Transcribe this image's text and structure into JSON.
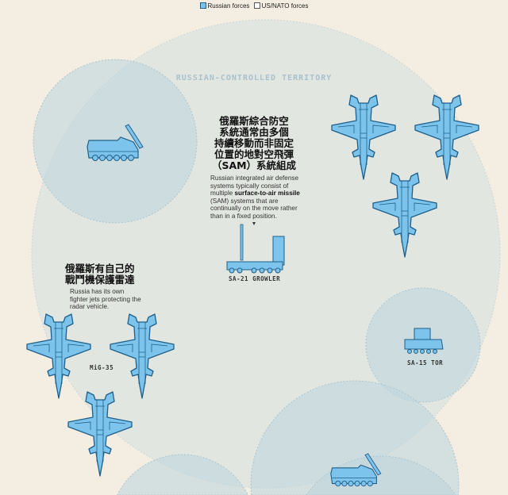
{
  "legend": {
    "russian": "Russian forces",
    "us_nato": "US/NATO forces"
  },
  "territory_label": "RUSSIAN-CONTROLLED TERRITORY",
  "sam_note": {
    "zh_lines": [
      "俄羅斯綜合防空",
      "系統通常由多個",
      "持續移動而非固定",
      "位置的地對空飛彈",
      "（SAM）系統組成"
    ],
    "en_before": "Russian integrated air defense systems typically consist of multiple ",
    "en_bold": "surface-to-air missile",
    "en_after": " (SAM) systems that are continually on the move rather than in a fixed position."
  },
  "jet_note": {
    "zh_lines": [
      "俄羅斯有自己的",
      "戰鬥機保護雷達"
    ],
    "en": "Russia has its own fighter jets protecting the radar vehicle."
  },
  "labels": {
    "sa21": "SA-21 GROWLER",
    "mig35": "MiG-35",
    "sa15": "SA-15 TOR"
  },
  "colors": {
    "background": "#f3ede2",
    "territory": "#e2e6e1",
    "sam_range": "#cddde2",
    "russian_fill": "#7cc4ec",
    "russian_stroke": "#1f5f8a"
  }
}
